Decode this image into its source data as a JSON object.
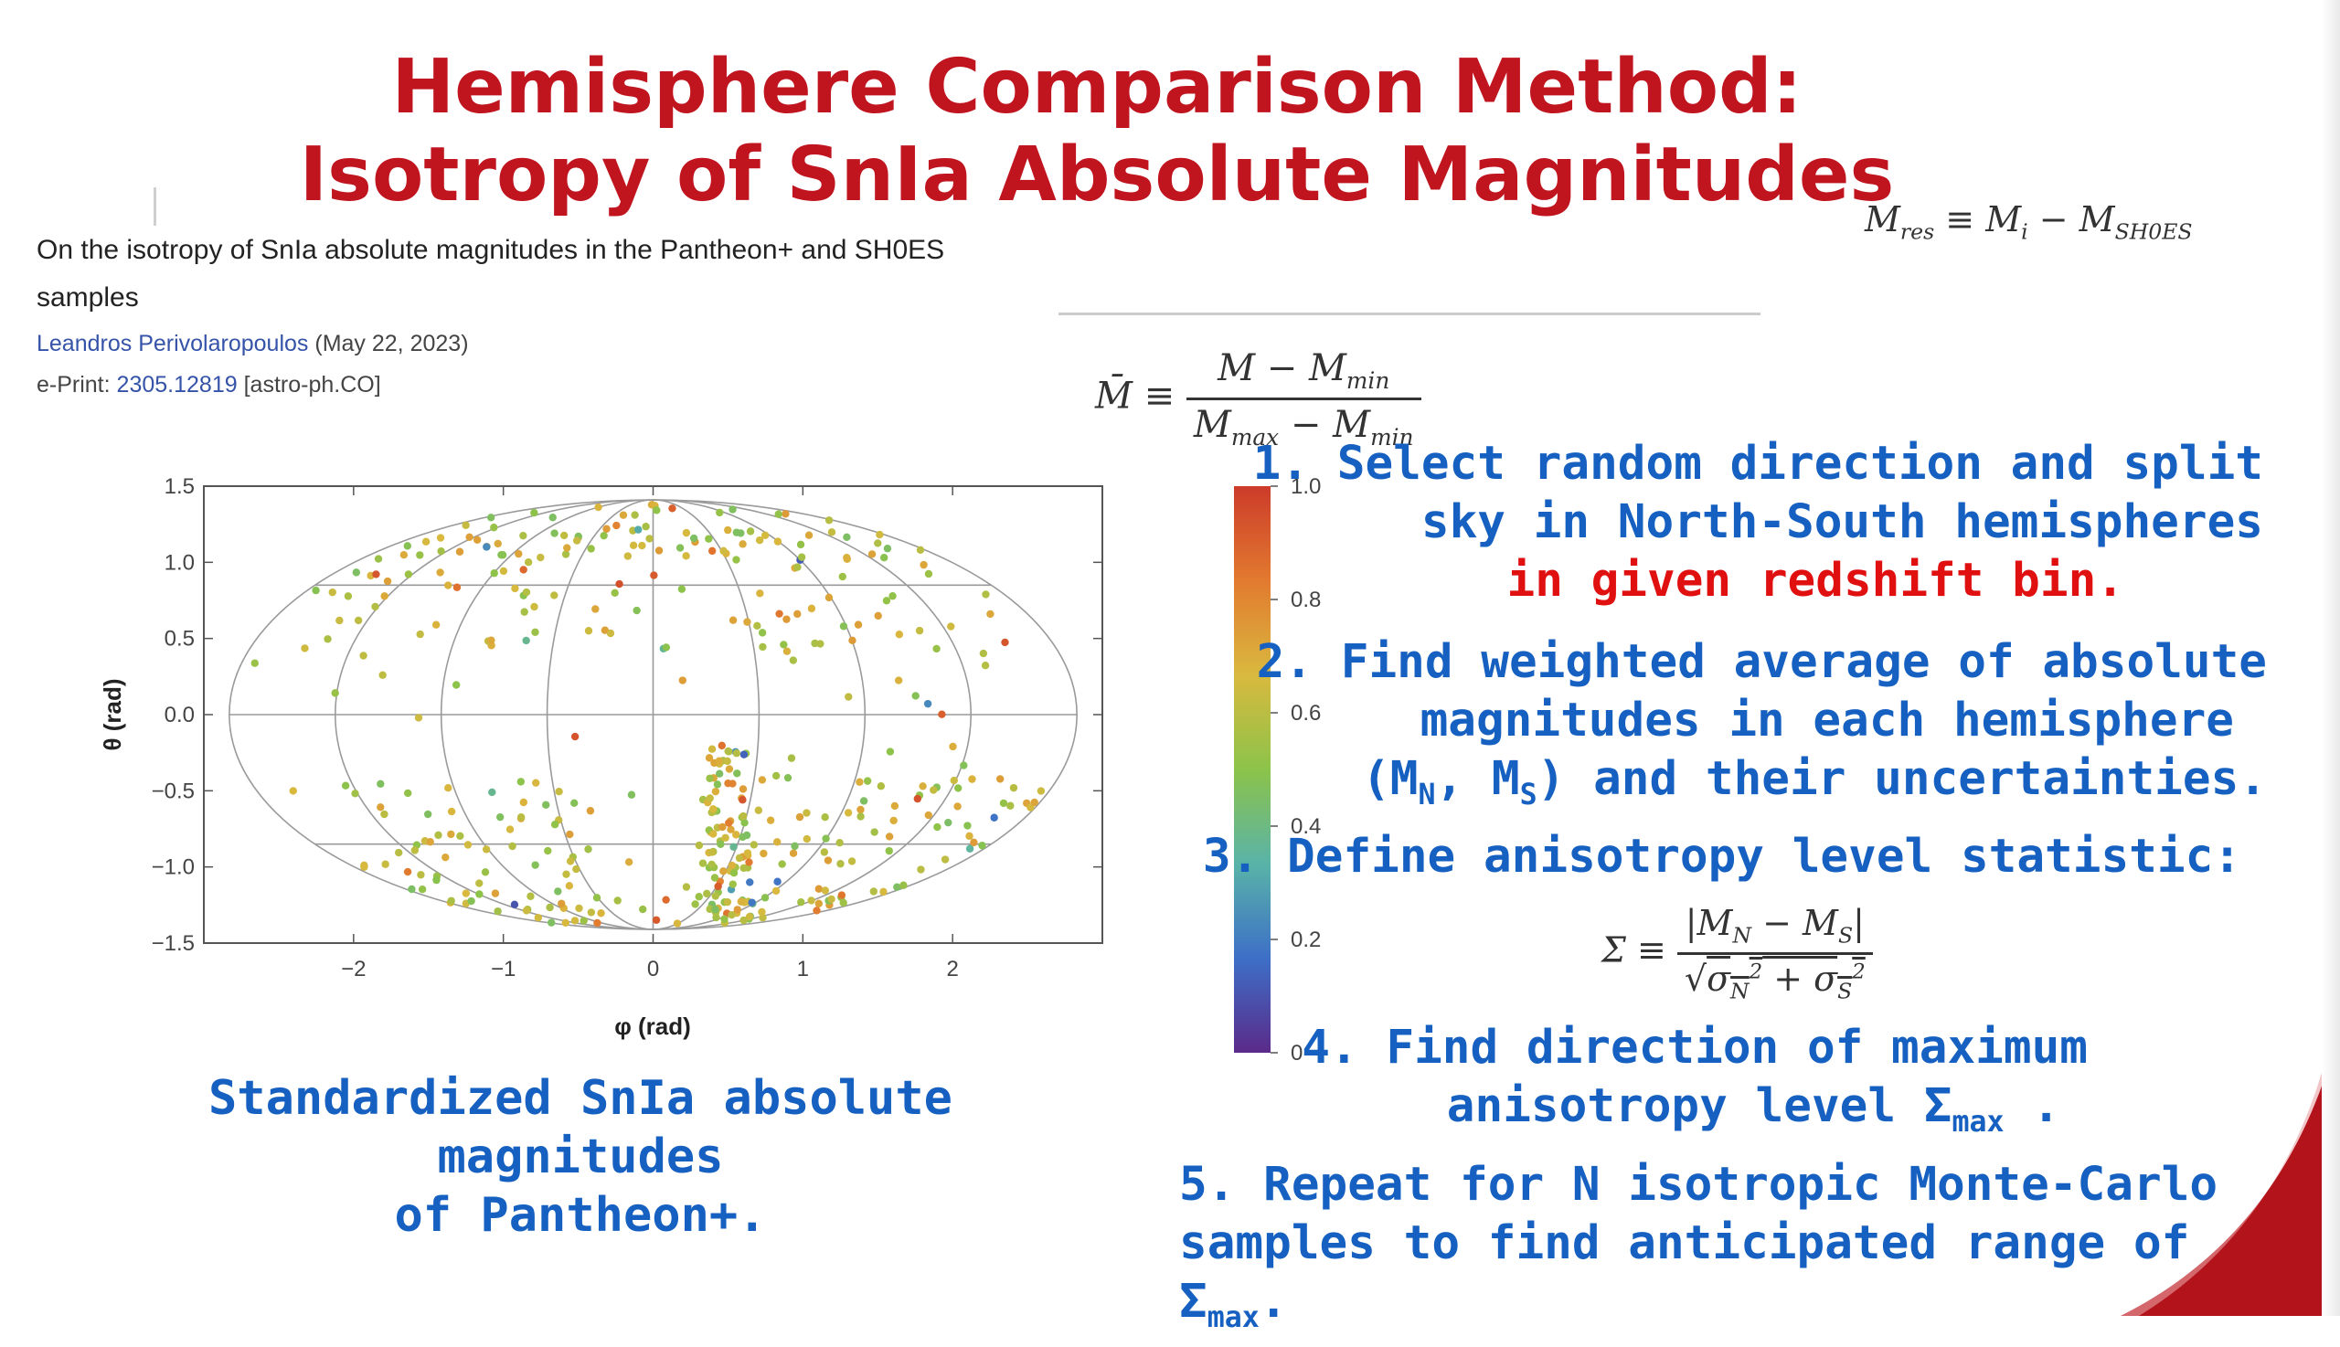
{
  "slide": {
    "title_line1": "Hemisphere Comparison Method:",
    "title_line2": "Isotropy of SnIa Absolute Magnitudes",
    "accent_color": "#c0141e"
  },
  "paper": {
    "title_line1": "On the isotropy of SnIa absolute magnitudes in the Pantheon+ and SH0ES",
    "title_line2": "samples",
    "author": "Leandros Perivolaropoulos",
    "date": "(May 22, 2023)",
    "eprint_label": "e-Print:",
    "eprint_id": "2305.12819",
    "eprint_category": "[astro-ph.CO]"
  },
  "equations": {
    "mres": "M_res ≡ M_i − M_SH0ES",
    "mbar": "M̄ ≡ (M − M_min)/(M_max − M_min)",
    "sigma": "Σ ≡ |M_N − M_S| / √(σ_N² + σ_S²)"
  },
  "steps": {
    "s1_line1": "1. Select random direction and split",
    "s1_line2": "sky in North-South hemispheres",
    "s1_line3": "in given redshift bin.",
    "s2_line1": "2. Find weighted average of absolute",
    "s2_line2": "magnitudes in each hemisphere",
    "s2_line3a": "(M",
    "s2_sub_n": "N",
    "s2_line3b": ", M",
    "s2_sub_s": "S",
    "s2_line3c": ") and their uncertainties.",
    "s3_line1": "3. Define anisotropy level statistic:",
    "s4_line1": "4. Find direction of maximum",
    "s4_line2a": "anisotropy level Σ",
    "s4_sub": "max",
    "s4_line2b": " .",
    "s5_line1": "5. Repeat for N isotropic Monte-Carlo",
    "s5_line2a": "samples to find anticipated range of Σ",
    "s5_sub": "max",
    "s5_line2b": "."
  },
  "caption": {
    "line1": "Standardized SnIa absolute magnitudes",
    "line2": "of Pantheon+."
  },
  "chart_data": {
    "type": "scatter",
    "projection": "mollweide",
    "xlabel": "φ (rad)",
    "ylabel": "θ (rad)",
    "xlim": [
      -3.0,
      3.0
    ],
    "ylim": [
      -1.5,
      1.5
    ],
    "xticks": [
      "−2",
      "−1",
      "0",
      "1",
      "2"
    ],
    "yticks": [
      "1.5",
      "1.0",
      "0.5",
      "0.0",
      "−0.5",
      "−1.0",
      "−1.5"
    ],
    "colorbar": {
      "range": [
        0,
        1
      ],
      "ticks": [
        "1.0",
        "0.8",
        "0.6",
        "0.4",
        "0.2",
        "0"
      ],
      "colormap": [
        "#5b2a8a",
        "#3d6fc7",
        "#59b3a8",
        "#8cc34a",
        "#d9b93e",
        "#e27a2f",
        "#cc3b2a"
      ]
    },
    "points_description_count": 620,
    "dominant_value_range": [
      0.45,
      0.75
    ]
  }
}
